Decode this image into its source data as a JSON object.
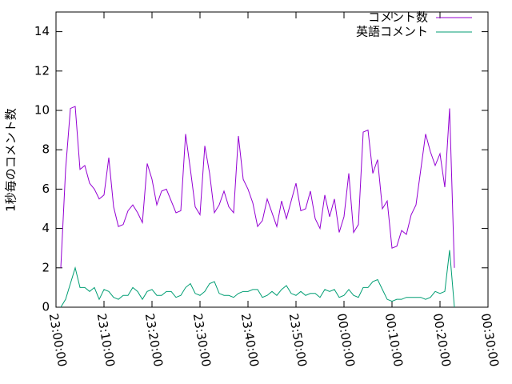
{
  "chart_data": {
    "type": "line",
    "ylabel": "1秒毎のコメント数",
    "x": [
      "23:01:00",
      "23:02:00",
      "23:03:00",
      "23:04:00",
      "23:05:00",
      "23:06:00",
      "23:07:00",
      "23:08:00",
      "23:09:00",
      "23:10:00",
      "23:11:00",
      "23:12:00",
      "23:13:00",
      "23:14:00",
      "23:15:00",
      "23:16:00",
      "23:17:00",
      "23:18:00",
      "23:19:00",
      "23:20:00",
      "23:21:00",
      "23:22:00",
      "23:23:00",
      "23:24:00",
      "23:25:00",
      "23:26:00",
      "23:27:00",
      "23:28:00",
      "23:29:00",
      "23:30:00",
      "23:31:00",
      "23:32:00",
      "23:33:00",
      "23:34:00",
      "23:35:00",
      "23:36:00",
      "23:37:00",
      "23:38:00",
      "23:39:00",
      "23:40:00",
      "23:41:00",
      "23:42:00",
      "23:43:00",
      "23:44:00",
      "23:45:00",
      "23:46:00",
      "23:47:00",
      "23:48:00",
      "23:49:00",
      "23:50:00",
      "23:51:00",
      "23:52:00",
      "23:53:00",
      "23:54:00",
      "23:55:00",
      "23:56:00",
      "23:57:00",
      "23:58:00",
      "23:59:00",
      "00:00:00",
      "00:01:00",
      "00:02:00",
      "00:03:00",
      "00:04:00",
      "00:05:00",
      "00:06:00",
      "00:07:00",
      "00:08:00",
      "00:09:00",
      "00:10:00",
      "00:11:00",
      "00:12:00",
      "00:13:00",
      "00:14:00",
      "00:15:00",
      "00:16:00",
      "00:17:00",
      "00:18:00",
      "00:19:00",
      "00:20:00",
      "00:21:00",
      "00:22:00",
      "00:23:00"
    ],
    "series": [
      {
        "name": "コメント数",
        "color": "#9400d3",
        "values": [
          2.0,
          7.0,
          10.1,
          10.2,
          7.0,
          7.2,
          6.3,
          6.0,
          5.5,
          5.7,
          7.6,
          5.1,
          4.1,
          4.2,
          4.9,
          5.2,
          4.8,
          4.3,
          7.3,
          6.5,
          5.2,
          5.9,
          6.0,
          5.4,
          4.8,
          4.9,
          8.8,
          7.0,
          5.1,
          4.7,
          8.2,
          6.8,
          4.8,
          5.2,
          5.9,
          5.1,
          4.8,
          8.7,
          6.5,
          6.0,
          5.3,
          4.1,
          4.4,
          5.5,
          4.8,
          4.1,
          5.4,
          4.5,
          5.4,
          6.3,
          4.9,
          5.0,
          5.9,
          4.5,
          4.0,
          5.7,
          4.6,
          5.5,
          3.8,
          4.6,
          6.8,
          3.8,
          4.2,
          8.9,
          9.0,
          6.8,
          7.5,
          5.0,
          5.4,
          3.0,
          3.1,
          3.9,
          3.7,
          4.7,
          5.2,
          7.0,
          8.8,
          7.9,
          7.2,
          7.8,
          6.1,
          10.1,
          2.0
        ]
      },
      {
        "name": "英語コメント",
        "color": "#009e73",
        "values": [
          0.0,
          0.4,
          1.2,
          2.0,
          1.0,
          1.0,
          0.8,
          1.0,
          0.4,
          0.9,
          0.8,
          0.5,
          0.4,
          0.6,
          0.6,
          1.0,
          0.8,
          0.4,
          0.8,
          0.9,
          0.6,
          0.6,
          0.8,
          0.8,
          0.5,
          0.6,
          1.0,
          1.2,
          0.7,
          0.6,
          0.8,
          1.2,
          1.3,
          0.7,
          0.6,
          0.6,
          0.5,
          0.7,
          0.8,
          0.8,
          0.9,
          0.9,
          0.5,
          0.6,
          0.8,
          0.6,
          0.9,
          1.1,
          0.7,
          0.6,
          0.8,
          0.6,
          0.7,
          0.7,
          0.5,
          0.9,
          0.8,
          0.9,
          0.5,
          0.6,
          0.9,
          0.6,
          0.5,
          1.0,
          1.0,
          1.3,
          1.4,
          0.9,
          0.4,
          0.3,
          0.4,
          0.4,
          0.5,
          0.5,
          0.5,
          0.5,
          0.4,
          0.5,
          0.8,
          0.7,
          0.8,
          2.9,
          0.0
        ]
      }
    ],
    "xlim": [
      "23:00:00",
      "00:30:00"
    ],
    "xticks": [
      "23:00:00",
      "23:10:00",
      "23:20:00",
      "23:30:00",
      "23:40:00",
      "23:50:00",
      "00:00:00",
      "00:10:00",
      "00:20:00",
      "00:30:00"
    ],
    "ylim": [
      0,
      15
    ],
    "yticks": [
      0,
      2,
      4,
      6,
      8,
      10,
      12,
      14
    ],
    "legend": "top-right"
  }
}
